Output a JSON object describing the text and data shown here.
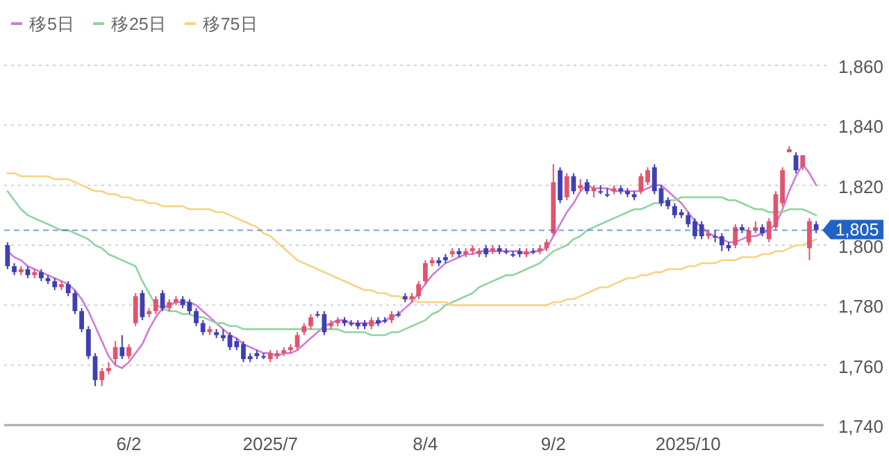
{
  "chart_data": {
    "type": "candlestick",
    "categories": [
      null,
      null,
      null,
      null,
      null,
      null,
      null,
      null,
      null,
      null,
      null,
      null,
      null,
      null,
      null,
      null,
      null,
      null,
      "6/2",
      null,
      null,
      null,
      null,
      null,
      null,
      null,
      null,
      null,
      null,
      null,
      null,
      null,
      null,
      null,
      null,
      null,
      null,
      null,
      null,
      "2025/7",
      null,
      null,
      null,
      null,
      null,
      null,
      null,
      null,
      null,
      null,
      null,
      null,
      null,
      null,
      null,
      null,
      null,
      null,
      null,
      null,
      null,
      null,
      "8/4",
      null,
      null,
      null,
      null,
      null,
      null,
      null,
      null,
      null,
      null,
      null,
      null,
      null,
      null,
      null,
      null,
      null,
      null,
      "9/2",
      null,
      null,
      null,
      null,
      null,
      null,
      null,
      null,
      null,
      null,
      null,
      null,
      null,
      null,
      null,
      null,
      null,
      null,
      null,
      "2025/10",
      null,
      null,
      null,
      null,
      null,
      null,
      null,
      null,
      null,
      null,
      null,
      null,
      null,
      null,
      null,
      null,
      null,
      null,
      null
    ],
    "ohlc": [
      [
        1800,
        1801,
        1792,
        1793
      ],
      [
        1793,
        1794,
        1790,
        1791
      ],
      [
        1791,
        1793,
        1790,
        1792
      ],
      [
        1792,
        1793,
        1789,
        1790
      ],
      [
        1790,
        1792,
        1789,
        1791
      ],
      [
        1791,
        1792,
        1788,
        1789
      ],
      [
        1789,
        1790,
        1787,
        1788
      ],
      [
        1788,
        1789,
        1785,
        1786
      ],
      [
        1786,
        1788,
        1785,
        1787
      ],
      [
        1787,
        1788,
        1783,
        1784
      ],
      [
        1784,
        1785,
        1777,
        1778
      ],
      [
        1778,
        1779,
        1771,
        1772
      ],
      [
        1772,
        1773,
        1762,
        1763
      ],
      [
        1763,
        1764,
        1753,
        1755
      ],
      [
        1755,
        1759,
        1753,
        1758
      ],
      [
        1758,
        1761,
        1757,
        1759
      ],
      [
        1762,
        1768,
        1760,
        1766
      ],
      [
        1766,
        1770,
        1762,
        1763
      ],
      [
        1763,
        1767,
        1762,
        1766
      ],
      [
        1774,
        1784,
        1773,
        1783
      ],
      [
        1784,
        1785,
        1775,
        1776
      ],
      [
        1777,
        1779,
        1776,
        1778
      ],
      [
        1778,
        1783,
        1777,
        1782
      ],
      [
        1784,
        1785,
        1778,
        1779
      ],
      [
        1779,
        1782,
        1778,
        1781
      ],
      [
        1781,
        1783,
        1780,
        1782
      ],
      [
        1782,
        1783,
        1779,
        1780
      ],
      [
        1781,
        1782,
        1777,
        1778
      ],
      [
        1778,
        1779,
        1773,
        1774
      ],
      [
        1774,
        1775,
        1770,
        1771
      ],
      [
        1771,
        1773,
        1770,
        1772
      ],
      [
        1771,
        1772,
        1769,
        1770
      ],
      [
        1770,
        1772,
        1768,
        1769
      ],
      [
        1770,
        1771,
        1765,
        1766
      ],
      [
        1768,
        1769,
        1765,
        1766
      ],
      [
        1767,
        1768,
        1761,
        1762
      ],
      [
        1763,
        1764,
        1761,
        1762
      ],
      [
        1764,
        1765,
        1762,
        1763
      ],
      [
        1763,
        1764,
        1762,
        1763
      ],
      [
        1762,
        1765,
        1761,
        1764
      ],
      [
        1763,
        1765,
        1762,
        1764
      ],
      [
        1764,
        1766,
        1763,
        1765
      ],
      [
        1765,
        1767,
        1764,
        1766
      ],
      [
        1766,
        1771,
        1765,
        1770
      ],
      [
        1771,
        1774,
        1770,
        1773
      ],
      [
        1773,
        1777,
        1772,
        1776
      ],
      [
        1777,
        1778,
        1776,
        1777
      ],
      [
        1777,
        1778,
        1770,
        1771
      ],
      [
        1773,
        1775,
        1772,
        1774
      ],
      [
        1774,
        1776,
        1773,
        1775
      ],
      [
        1775,
        1776,
        1773,
        1774
      ],
      [
        1774,
        1775,
        1773,
        1774
      ],
      [
        1774,
        1775,
        1772,
        1773
      ],
      [
        1774,
        1775,
        1772,
        1773
      ],
      [
        1773,
        1776,
        1772,
        1775
      ],
      [
        1775,
        1776,
        1773,
        1774
      ],
      [
        1775,
        1776,
        1774,
        1775
      ],
      [
        1775,
        1778,
        1774,
        1777
      ],
      [
        1777,
        1778,
        1776,
        1777
      ],
      [
        1783,
        1784,
        1781,
        1782
      ],
      [
        1782,
        1784,
        1781,
        1783
      ],
      [
        1783,
        1788,
        1782,
        1787
      ],
      [
        1788,
        1795,
        1787,
        1794
      ],
      [
        1794,
        1796,
        1793,
        1795
      ],
      [
        1795,
        1796,
        1793,
        1794
      ],
      [
        1796,
        1797,
        1794,
        1795
      ],
      [
        1797,
        1799,
        1796,
        1798
      ],
      [
        1798,
        1799,
        1796,
        1797
      ],
      [
        1797,
        1799,
        1796,
        1798
      ],
      [
        1798,
        1800,
        1797,
        1799
      ],
      [
        1797,
        1799,
        1796,
        1798
      ],
      [
        1799,
        1800,
        1796,
        1797
      ],
      [
        1798,
        1800,
        1797,
        1799
      ],
      [
        1799,
        1800,
        1797,
        1798
      ],
      [
        1798,
        1799,
        1797,
        1798
      ],
      [
        1797,
        1798,
        1796,
        1797
      ],
      [
        1798,
        1799,
        1796,
        1797
      ],
      [
        1797,
        1799,
        1796,
        1798
      ],
      [
        1798,
        1799,
        1797,
        1798
      ],
      [
        1798,
        1800,
        1797,
        1799
      ],
      [
        1799,
        1802,
        1798,
        1801
      ],
      [
        1804,
        1827,
        1803,
        1821
      ],
      [
        1825,
        1826,
        1814,
        1815
      ],
      [
        1816,
        1824,
        1815,
        1823
      ],
      [
        1823,
        1824,
        1817,
        1818
      ],
      [
        1819,
        1822,
        1818,
        1820
      ],
      [
        1821,
        1822,
        1817,
        1818
      ],
      [
        1818,
        1820,
        1816,
        1819
      ],
      [
        1818,
        1820,
        1817,
        1818
      ],
      [
        1817,
        1819,
        1816,
        1817
      ],
      [
        1818,
        1820,
        1817,
        1819
      ],
      [
        1819,
        1820,
        1817,
        1818
      ],
      [
        1818,
        1819,
        1816,
        1817
      ],
      [
        1817,
        1818,
        1815,
        1816
      ],
      [
        1818,
        1824,
        1817,
        1823
      ],
      [
        1821,
        1826,
        1820,
        1825
      ],
      [
        1826,
        1827,
        1817,
        1818
      ],
      [
        1819,
        1820,
        1813,
        1814
      ],
      [
        1815,
        1816,
        1812,
        1813
      ],
      [
        1813,
        1814,
        1809,
        1810
      ],
      [
        1811,
        1812,
        1809,
        1810
      ],
      [
        1810,
        1811,
        1806,
        1807
      ],
      [
        1808,
        1809,
        1802,
        1803
      ],
      [
        1807,
        1808,
        1802,
        1803
      ],
      [
        1803,
        1805,
        1802,
        1804
      ],
      [
        1803,
        1805,
        1801,
        1803
      ],
      [
        1803,
        1804,
        1798,
        1800
      ],
      [
        1800,
        1801,
        1798,
        1799
      ],
      [
        1800,
        1807,
        1799,
        1806
      ],
      [
        1806,
        1807,
        1804,
        1805
      ],
      [
        1801,
        1806,
        1800,
        1805
      ],
      [
        1805,
        1808,
        1804,
        1806
      ],
      [
        1806,
        1807,
        1803,
        1804
      ],
      [
        1802,
        1809,
        1801,
        1808
      ],
      [
        1806,
        1818,
        1805,
        1817
      ],
      [
        1814,
        1826,
        1813,
        1825
      ],
      [
        1831,
        1833,
        1831,
        1832
      ],
      [
        1830,
        1831,
        1824,
        1825
      ],
      [
        1826,
        1830,
        1825,
        1830
      ],
      [
        1799,
        1809,
        1795,
        1808
      ],
      [
        1807,
        1808,
        1804,
        1805
      ]
    ],
    "colors": [
      "#3f3fb4",
      "#3f3fb4",
      "#e2546c",
      "#3f3fb4",
      "#e2546c",
      "#3f3fb4",
      "#3f3fb4",
      "#3f3fb4",
      "#e2546c",
      "#3f3fb4",
      "#3f3fb4",
      "#3f3fb4",
      "#3f3fb4",
      "#3f3fb4",
      "#e2546c",
      "#e2546c",
      "#e2546c",
      "#3f3fb4",
      "#e2546c",
      "#e2546c",
      "#3f3fb4",
      "#e2546c",
      "#e2546c",
      "#3f3fb4",
      "#e2546c",
      "#e2546c",
      "#3f3fb4",
      "#3f3fb4",
      "#3f3fb4",
      "#3f3fb4",
      "#e2546c",
      "#3f3fb4",
      "#3f3fb4",
      "#3f3fb4",
      "#3f3fb4",
      "#3f3fb4",
      "#3f3fb4",
      "#3f3fb4",
      "#3f3fb4",
      "#e2546c",
      "#e2546c",
      "#e2546c",
      "#e2546c",
      "#e2546c",
      "#e2546c",
      "#e2546c",
      "#3f3fb4",
      "#3f3fb4",
      "#e2546c",
      "#e2546c",
      "#3f3fb4",
      "#3f3fb4",
      "#3f3fb4",
      "#3f3fb4",
      "#e2546c",
      "#3f3fb4",
      "#3f3fb4",
      "#e2546c",
      "#3f3fb4",
      "#3f3fb4",
      "#e2546c",
      "#e2546c",
      "#e2546c",
      "#e2546c",
      "#3f3fb4",
      "#3f3fb4",
      "#e2546c",
      "#3f3fb4",
      "#e2546c",
      "#e2546c",
      "#e2546c",
      "#3f3fb4",
      "#e2546c",
      "#3f3fb4",
      "#3f3fb4",
      "#3f3fb4",
      "#3f3fb4",
      "#e2546c",
      "#3f3fb4",
      "#e2546c",
      "#e2546c",
      "#e2546c",
      "#3f3fb4",
      "#e2546c",
      "#3f3fb4",
      "#e2546c",
      "#3f3fb4",
      "#e2546c",
      "#3f3fb4",
      "#3f3fb4",
      "#e2546c",
      "#3f3fb4",
      "#3f3fb4",
      "#3f3fb4",
      "#e2546c",
      "#e2546c",
      "#3f3fb4",
      "#3f3fb4",
      "#3f3fb4",
      "#3f3fb4",
      "#3f3fb4",
      "#3f3fb4",
      "#3f3fb4",
      "#3f3fb4",
      "#e2546c",
      "#3f3fb4",
      "#3f3fb4",
      "#3f3fb4",
      "#e2546c",
      "#3f3fb4",
      "#e2546c",
      "#e2546c",
      "#3f3fb4",
      "#e2546c",
      "#e2546c",
      "#e2546c",
      "#e2546c",
      "#3f3fb4",
      "#e2546c",
      "#e2546c",
      "#3f3fb4"
    ],
    "series": [
      {
        "name": "移5日",
        "type": "line",
        "color": "#d07ad8",
        "values": [
          1798,
          1796,
          1795,
          1793,
          1792,
          1791,
          1790,
          1789,
          1788,
          1787,
          1785,
          1782,
          1778,
          1773,
          1768,
          1763,
          1760,
          1759,
          1761,
          1764,
          1767,
          1772,
          1776,
          1779,
          1780,
          1781,
          1781,
          1781,
          1780,
          1778,
          1776,
          1774,
          1772,
          1770,
          1769,
          1767,
          1766,
          1765,
          1764,
          1764,
          1763,
          1764,
          1764,
          1765,
          1767,
          1769,
          1771,
          1773,
          1774,
          1775,
          1775,
          1774,
          1774,
          1774,
          1774,
          1774,
          1775,
          1776,
          1777,
          1779,
          1781,
          1784,
          1787,
          1790,
          1792,
          1794,
          1795,
          1796,
          1797,
          1797,
          1798,
          1798,
          1798,
          1798,
          1798,
          1798,
          1798,
          1797,
          1798,
          1798,
          1799,
          1803,
          1807,
          1811,
          1814,
          1818,
          1820,
          1819,
          1819,
          1819,
          1818,
          1818,
          1818,
          1818,
          1818,
          1819,
          1820,
          1820,
          1818,
          1816,
          1814,
          1811,
          1808,
          1806,
          1804,
          1803,
          1802,
          1801,
          1801,
          1802,
          1803,
          1803,
          1804,
          1805,
          1807,
          1812,
          1818,
          1823,
          1827,
          1824,
          1820
        ]
      },
      {
        "name": "移25日",
        "type": "line",
        "color": "#8fd3a0",
        "values": [
          1818,
          1815,
          1812,
          1810,
          1809,
          1808,
          1807,
          1806,
          1805,
          1805,
          1804,
          1803,
          1802,
          1800,
          1799,
          1797,
          1796,
          1795,
          1794,
          1793,
          1788,
          1784,
          1780,
          1779,
          1778,
          1778,
          1777,
          1777,
          1776,
          1776,
          1775,
          1774,
          1774,
          1773,
          1773,
          1772,
          1772,
          1772,
          1772,
          1772,
          1772,
          1772,
          1772,
          1772,
          1772,
          1772,
          1772,
          1772,
          1772,
          1772,
          1771,
          1771,
          1771,
          1771,
          1770,
          1770,
          1770,
          1771,
          1771,
          1772,
          1773,
          1774,
          1775,
          1777,
          1778,
          1780,
          1781,
          1782,
          1783,
          1784,
          1786,
          1787,
          1788,
          1789,
          1790,
          1790,
          1791,
          1792,
          1793,
          1794,
          1796,
          1798,
          1799,
          1800,
          1802,
          1803,
          1805,
          1806,
          1807,
          1808,
          1809,
          1810,
          1811,
          1812,
          1812,
          1813,
          1814,
          1814,
          1815,
          1815,
          1816,
          1816,
          1816,
          1816,
          1816,
          1816,
          1816,
          1815,
          1815,
          1814,
          1813,
          1812,
          1812,
          1811,
          1811,
          1811,
          1812,
          1812,
          1812,
          1811,
          1810
        ]
      },
      {
        "name": "移75日",
        "type": "line",
        "color": "#f6d382",
        "values": [
          1824,
          1824,
          1823,
          1823,
          1823,
          1823,
          1823,
          1822,
          1822,
          1822,
          1821,
          1820,
          1819,
          1818,
          1818,
          1817,
          1817,
          1816,
          1816,
          1815,
          1815,
          1814,
          1814,
          1813,
          1813,
          1813,
          1813,
          1812,
          1812,
          1812,
          1812,
          1811,
          1811,
          1810,
          1809,
          1808,
          1807,
          1806,
          1804,
          1803,
          1801,
          1799,
          1797,
          1795,
          1794,
          1793,
          1792,
          1791,
          1790,
          1789,
          1788,
          1787,
          1786,
          1785,
          1785,
          1784,
          1784,
          1783,
          1783,
          1782,
          1782,
          1781,
          1781,
          1781,
          1781,
          1781,
          1780,
          1780,
          1780,
          1780,
          1780,
          1780,
          1780,
          1780,
          1780,
          1780,
          1780,
          1780,
          1780,
          1780,
          1780,
          1781,
          1781,
          1782,
          1782,
          1783,
          1784,
          1785,
          1786,
          1786,
          1787,
          1788,
          1789,
          1789,
          1790,
          1790,
          1791,
          1791,
          1792,
          1792,
          1792,
          1793,
          1793,
          1794,
          1794,
          1794,
          1795,
          1795,
          1795,
          1796,
          1796,
          1796,
          1797,
          1797,
          1798,
          1798,
          1799,
          1800,
          1800,
          1801,
          1802
        ]
      }
    ],
    "ylim": [
      1740,
      1860
    ],
    "yticks": [
      {
        "value": 1740,
        "label": "1,740"
      },
      {
        "value": 1760,
        "label": "1,760"
      },
      {
        "value": 1780,
        "label": "1,780"
      },
      {
        "value": 1800,
        "label": "1,800"
      },
      {
        "value": 1820,
        "label": "1,820"
      },
      {
        "value": 1840,
        "label": "1,840"
      },
      {
        "value": 1860,
        "label": "1,860"
      }
    ],
    "ref_lines": [
      {
        "axis": "y",
        "value": 1805,
        "label": "1,805",
        "color": "#1f63c6",
        "line_style": "dashed"
      }
    ],
    "grid": "y",
    "legend": "top left"
  }
}
